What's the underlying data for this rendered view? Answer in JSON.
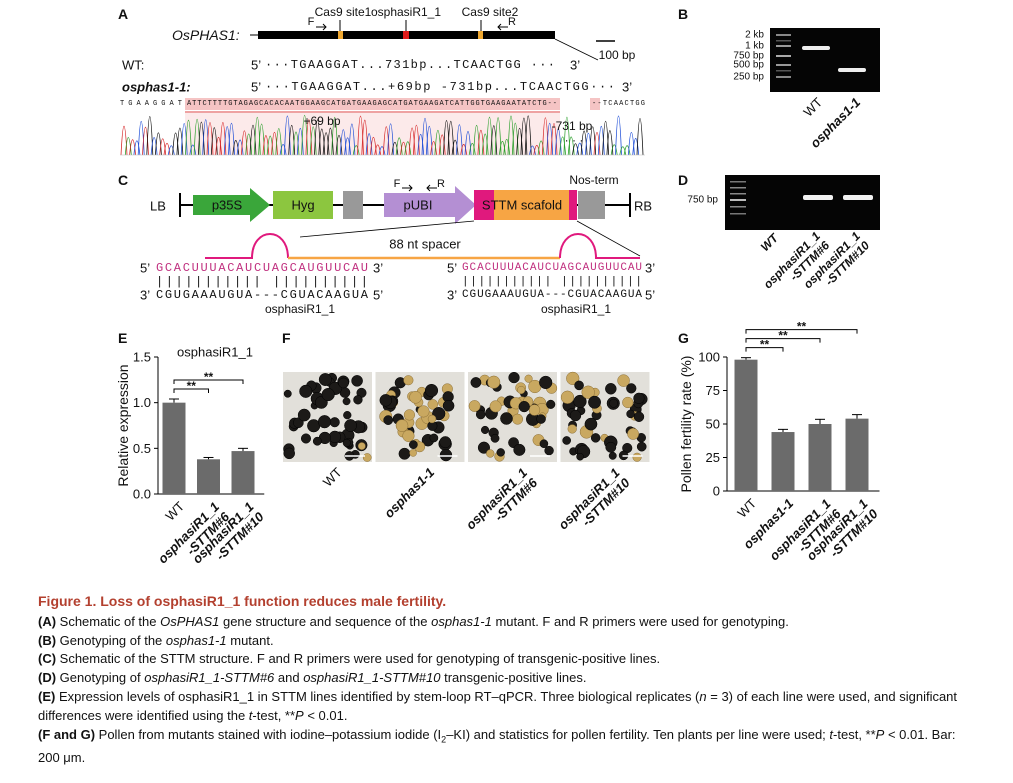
{
  "panel_a": {
    "letter": "A",
    "gene": "OsPHAS1:",
    "site1": "Cas9 site1",
    "target": "osphasiR1_1",
    "site2": "Cas9 site2",
    "f": "F",
    "r": "R",
    "scale": "100 bp",
    "wt_label": "WT:",
    "wt_5": "5’",
    "wt_seq": "···TGAAGGAT...731bp...TCAACTGG ···",
    "wt_3": "3’",
    "mut_label": "osphas1-1:",
    "mut_5": "5’",
    "mut_seq": "···TGAAGGAT...+69bp -731bp...TCAACTGG···",
    "mut_3": "3’",
    "trace_left": "TGAAGGAT",
    "trace_insert": "ATTCTTTTGTAGAGCACACAATGGAAGCATGATGAAGAGCATGATGAAGATCATTGGTGAAGAATATCTG--",
    "trace_right": "--TCAACTGG",
    "ins_label": "+69 bp",
    "del_label": "-731 bp",
    "dots": "· · ·"
  },
  "panel_b": {
    "letter": "B",
    "ladder": [
      "2 kb",
      "1 kb",
      "750 bp",
      "500 bp",
      "250 bp"
    ],
    "lanes": [
      "WT",
      "osphas1-1"
    ]
  },
  "panel_c": {
    "letter": "C",
    "lb": "LB",
    "p35s": "p35S",
    "hyg": "Hyg",
    "f": "F",
    "r": "R",
    "pubi": "pUBI",
    "sttm": "STTM scafold",
    "nos": "Nos-term",
    "rb": "RB",
    "spacer": "88 nt spacer",
    "duplexes": [
      {
        "p5": "5’",
        "top": "GCACUUUACAUCUAGCAUGUUCAU",
        "p3": "3’",
        "bars": "|||||||||||   ||||||||||",
        "b3": "3’",
        "bottom": "CGUGAAAUGUA---CGUACAAGUA",
        "b5": "5’",
        "name": "osphasiR1_1"
      },
      {
        "p5": "5’",
        "top": "GCACUUUACAUCUAGCAUGUUCAU",
        "p3": "3’",
        "bars": "|||||||||||   ||||||||||",
        "b3": "3’",
        "bottom": "CGUGAAAUGUA---CGUACAAGUA",
        "b5": "5’",
        "name": "osphasiR1_1"
      }
    ]
  },
  "panel_d": {
    "letter": "D",
    "marker": "750 bp",
    "lanes": [
      "WT",
      "osphasiR1_1\n-STTM#6",
      "osphasiR1_1\n-STTM#10"
    ]
  },
  "panel_f": {
    "letter": "F",
    "lanes": [
      "WT",
      "osphas1-1",
      "osphasiR1_1\n-STTM#6",
      "osphasiR1_1\n-STTM#10"
    ]
  },
  "chart_data": [
    {
      "type": "bar",
      "letter": "E",
      "title": "osphasiR1_1",
      "ylabel": "Relative expression",
      "categories": [
        "WT",
        "osphasiR1_1\n-STTM#6",
        "osphasiR1_1\n-STTM#10"
      ],
      "values": [
        1.0,
        0.38,
        0.47
      ],
      "errors": [
        0.04,
        0.02,
        0.03
      ],
      "color": "#6b6b6b",
      "ylim": [
        0,
        1.5
      ],
      "yticks": [
        {
          "value": 0,
          "label": "0.0"
        },
        0.5,
        {
          "value": 1,
          "label": "1.0"
        },
        1.5
      ],
      "significance": [
        {
          "label": "**",
          "pair": [
            0,
            1
          ]
        },
        {
          "label": "**",
          "pair": [
            0,
            2
          ]
        }
      ]
    },
    {
      "type": "bar",
      "letter": "G",
      "ylabel": "Pollen fertility rate (%)",
      "categories": [
        "WT",
        "osphas1-1",
        "osphasiR1_1\n-STTM#6",
        "osphasiR1_1\n-STTM#10"
      ],
      "values": [
        98,
        44,
        50,
        54
      ],
      "errors": [
        1.5,
        2,
        3.5,
        3
      ],
      "color": "#6b6b6b",
      "ylim": [
        0,
        100
      ],
      "yticks": [
        0,
        25,
        50,
        75,
        100
      ],
      "significance": [
        {
          "label": "**",
          "pair": [
            0,
            1
          ]
        },
        {
          "label": "**",
          "pair": [
            0,
            2
          ]
        },
        {
          "label": "**",
          "pair": [
            0,
            3
          ]
        }
      ]
    }
  ],
  "caption": {
    "title": "Figure 1. Loss of osphasiR1_1 function reduces male fertility.",
    "paragraphs": [
      [
        "(A)",
        " Schematic of the ",
        "OsPHAS1",
        " gene structure and sequence of the ",
        "osphas1-1",
        " mutant. F and R primers were used for genotyping."
      ],
      [
        "(B)",
        " Genotyping of the ",
        "osphas1-1",
        " mutant."
      ],
      [
        "(C)",
        " Schematic of the STTM structure. F and R primers were used for genotyping of transgenic-positive lines."
      ],
      [
        "(D)",
        " Genotyping of ",
        "osphasiR1_1-STTM#6",
        " and ",
        "osphasiR1_1-STTM#10",
        " transgenic-positive lines."
      ],
      [
        "(E)",
        " Expression levels of osphasiR1_1 in STTM lines identified by stem-loop RT–qPCR. Three biological replicates (",
        "n",
        " = 3) of each line were used, and significant differences were identified using the ",
        "t",
        "-test, **",
        "P",
        " < 0.01."
      ],
      [
        "(F and G)",
        " Pollen from mutants stained with iodine–potassium iodide (I",
        "2",
        "–KI) and statistics for pollen fertility. Ten plants per line were used; ",
        "t",
        "-test, **",
        "P",
        " < 0.01. Bar: 200 μm."
      ]
    ]
  }
}
